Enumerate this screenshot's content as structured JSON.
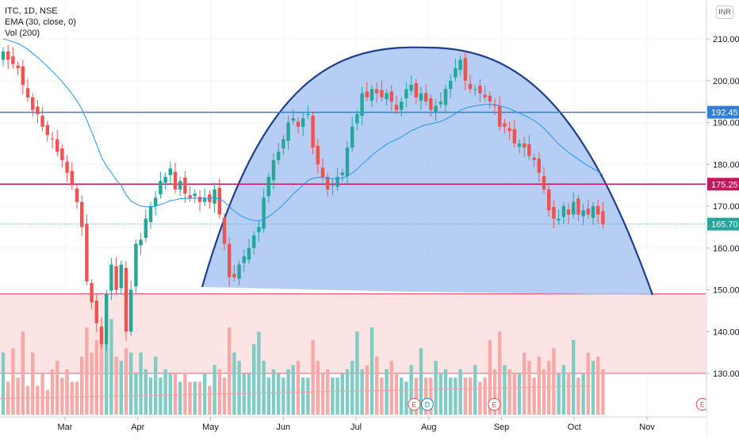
{
  "legend": {
    "symbol": "ITC, 1D, NSE",
    "ema": "EMA (30, close, 0)",
    "volume": "Vol (200)"
  },
  "currency_label": "INR",
  "colors": {
    "up": "#26a69a",
    "down": "#ef5350",
    "volume_up": "#80cbc4",
    "volume_down": "#f7a9a7",
    "ema": "#2196f3",
    "arc_fill": "#a9c4f2",
    "arc_stroke": "#1e3f8a",
    "line_blue": "#2f7fd6",
    "line_red": "#c2185b",
    "zone_fill": "#fde4e4",
    "zone_stroke": "#d6324e",
    "axis_text": "#131722",
    "grid": "#f0f3fa"
  },
  "chart_data": {
    "type": "candlestick",
    "y_axis": {
      "ticks": [
        130,
        140,
        150,
        160,
        170,
        180,
        190,
        200,
        210
      ],
      "range": [
        121,
        218
      ]
    },
    "x_axis": {
      "labels": [
        "Mar",
        "Apr",
        "May",
        "Jun",
        "Jul",
        "Aug",
        "Sep",
        "Oct",
        "Nov"
      ]
    },
    "price_levels": [
      {
        "name": "resistance",
        "price": 192.45,
        "label": "192.45",
        "color": "#2f7fd6"
      },
      {
        "name": "ema-level",
        "price": 175.25,
        "label": "175.25",
        "color": "#c2185b"
      },
      {
        "name": "last-price",
        "price": 165.7,
        "label": "165.70",
        "color": "#26a69a"
      }
    ],
    "zone": {
      "from": 130,
      "to": 149
    },
    "closes": [
      207,
      205,
      204,
      203,
      199,
      196,
      193,
      192,
      189,
      187,
      186,
      183,
      181,
      178,
      175,
      171,
      165,
      152,
      147,
      142,
      137,
      149,
      156,
      150,
      156,
      140,
      150,
      161,
      162,
      167,
      170,
      172,
      176,
      177,
      179,
      174,
      176,
      173,
      172,
      173,
      171,
      172,
      171,
      174,
      168,
      161,
      153,
      153,
      156,
      158,
      160,
      163,
      165,
      172,
      177,
      181,
      183,
      186,
      190,
      191,
      189,
      191,
      192,
      184,
      180,
      177,
      174,
      175,
      177,
      178,
      184,
      189,
      192,
      197,
      196,
      198,
      197,
      196,
      197,
      195,
      193,
      195,
      198,
      199,
      196,
      197,
      195,
      193,
      194,
      195,
      198,
      200,
      203,
      205,
      200,
      198,
      198,
      197,
      196,
      195,
      194,
      189,
      189,
      188,
      185,
      185,
      184,
      182,
      181,
      178,
      174,
      169,
      167,
      167,
      170,
      168,
      171,
      168,
      169,
      168,
      170,
      168,
      165.7
    ],
    "volumes": [
      135,
      128,
      136,
      129,
      140,
      127,
      135,
      127,
      130,
      126,
      131,
      133,
      129,
      131,
      128,
      128,
      134,
      141,
      135,
      138,
      137,
      137,
      143,
      134,
      133,
      136,
      135,
      130,
      135,
      131,
      129,
      134,
      129,
      131,
      130,
      130,
      128,
      130,
      128,
      128,
      128,
      130,
      127,
      132,
      131,
      129,
      141,
      135,
      133,
      130,
      130,
      137,
      140,
      133,
      129,
      131,
      130,
      129,
      131,
      132,
      133,
      129,
      129,
      138,
      133,
      130,
      131,
      129,
      129,
      130,
      131,
      133,
      140,
      131,
      132,
      141,
      134,
      129,
      131,
      133,
      130,
      129,
      128,
      132,
      129,
      136,
      129,
      129,
      133,
      130,
      131,
      129,
      129,
      131,
      129,
      129,
      132,
      128,
      129,
      138,
      131,
      140,
      132,
      131,
      130,
      130,
      135,
      133,
      129,
      134,
      131,
      133,
      136,
      130,
      132,
      130,
      138,
      129,
      130,
      135,
      133,
      134,
      131
    ],
    "events": [
      {
        "label": "E",
        "style": "dividend-earnings",
        "month_pos": 4.8,
        "color": "#e34d4d"
      },
      {
        "label": "D",
        "style": "dividend",
        "month_pos": 4.98,
        "color": "#1e88b8"
      },
      {
        "label": "E",
        "style": "earnings",
        "month_pos": 5.9,
        "color": "#e34d4d"
      },
      {
        "label": "E",
        "style": "earnings-upcoming",
        "month_pos": 8.76,
        "color": "#e34d4d"
      }
    ]
  }
}
